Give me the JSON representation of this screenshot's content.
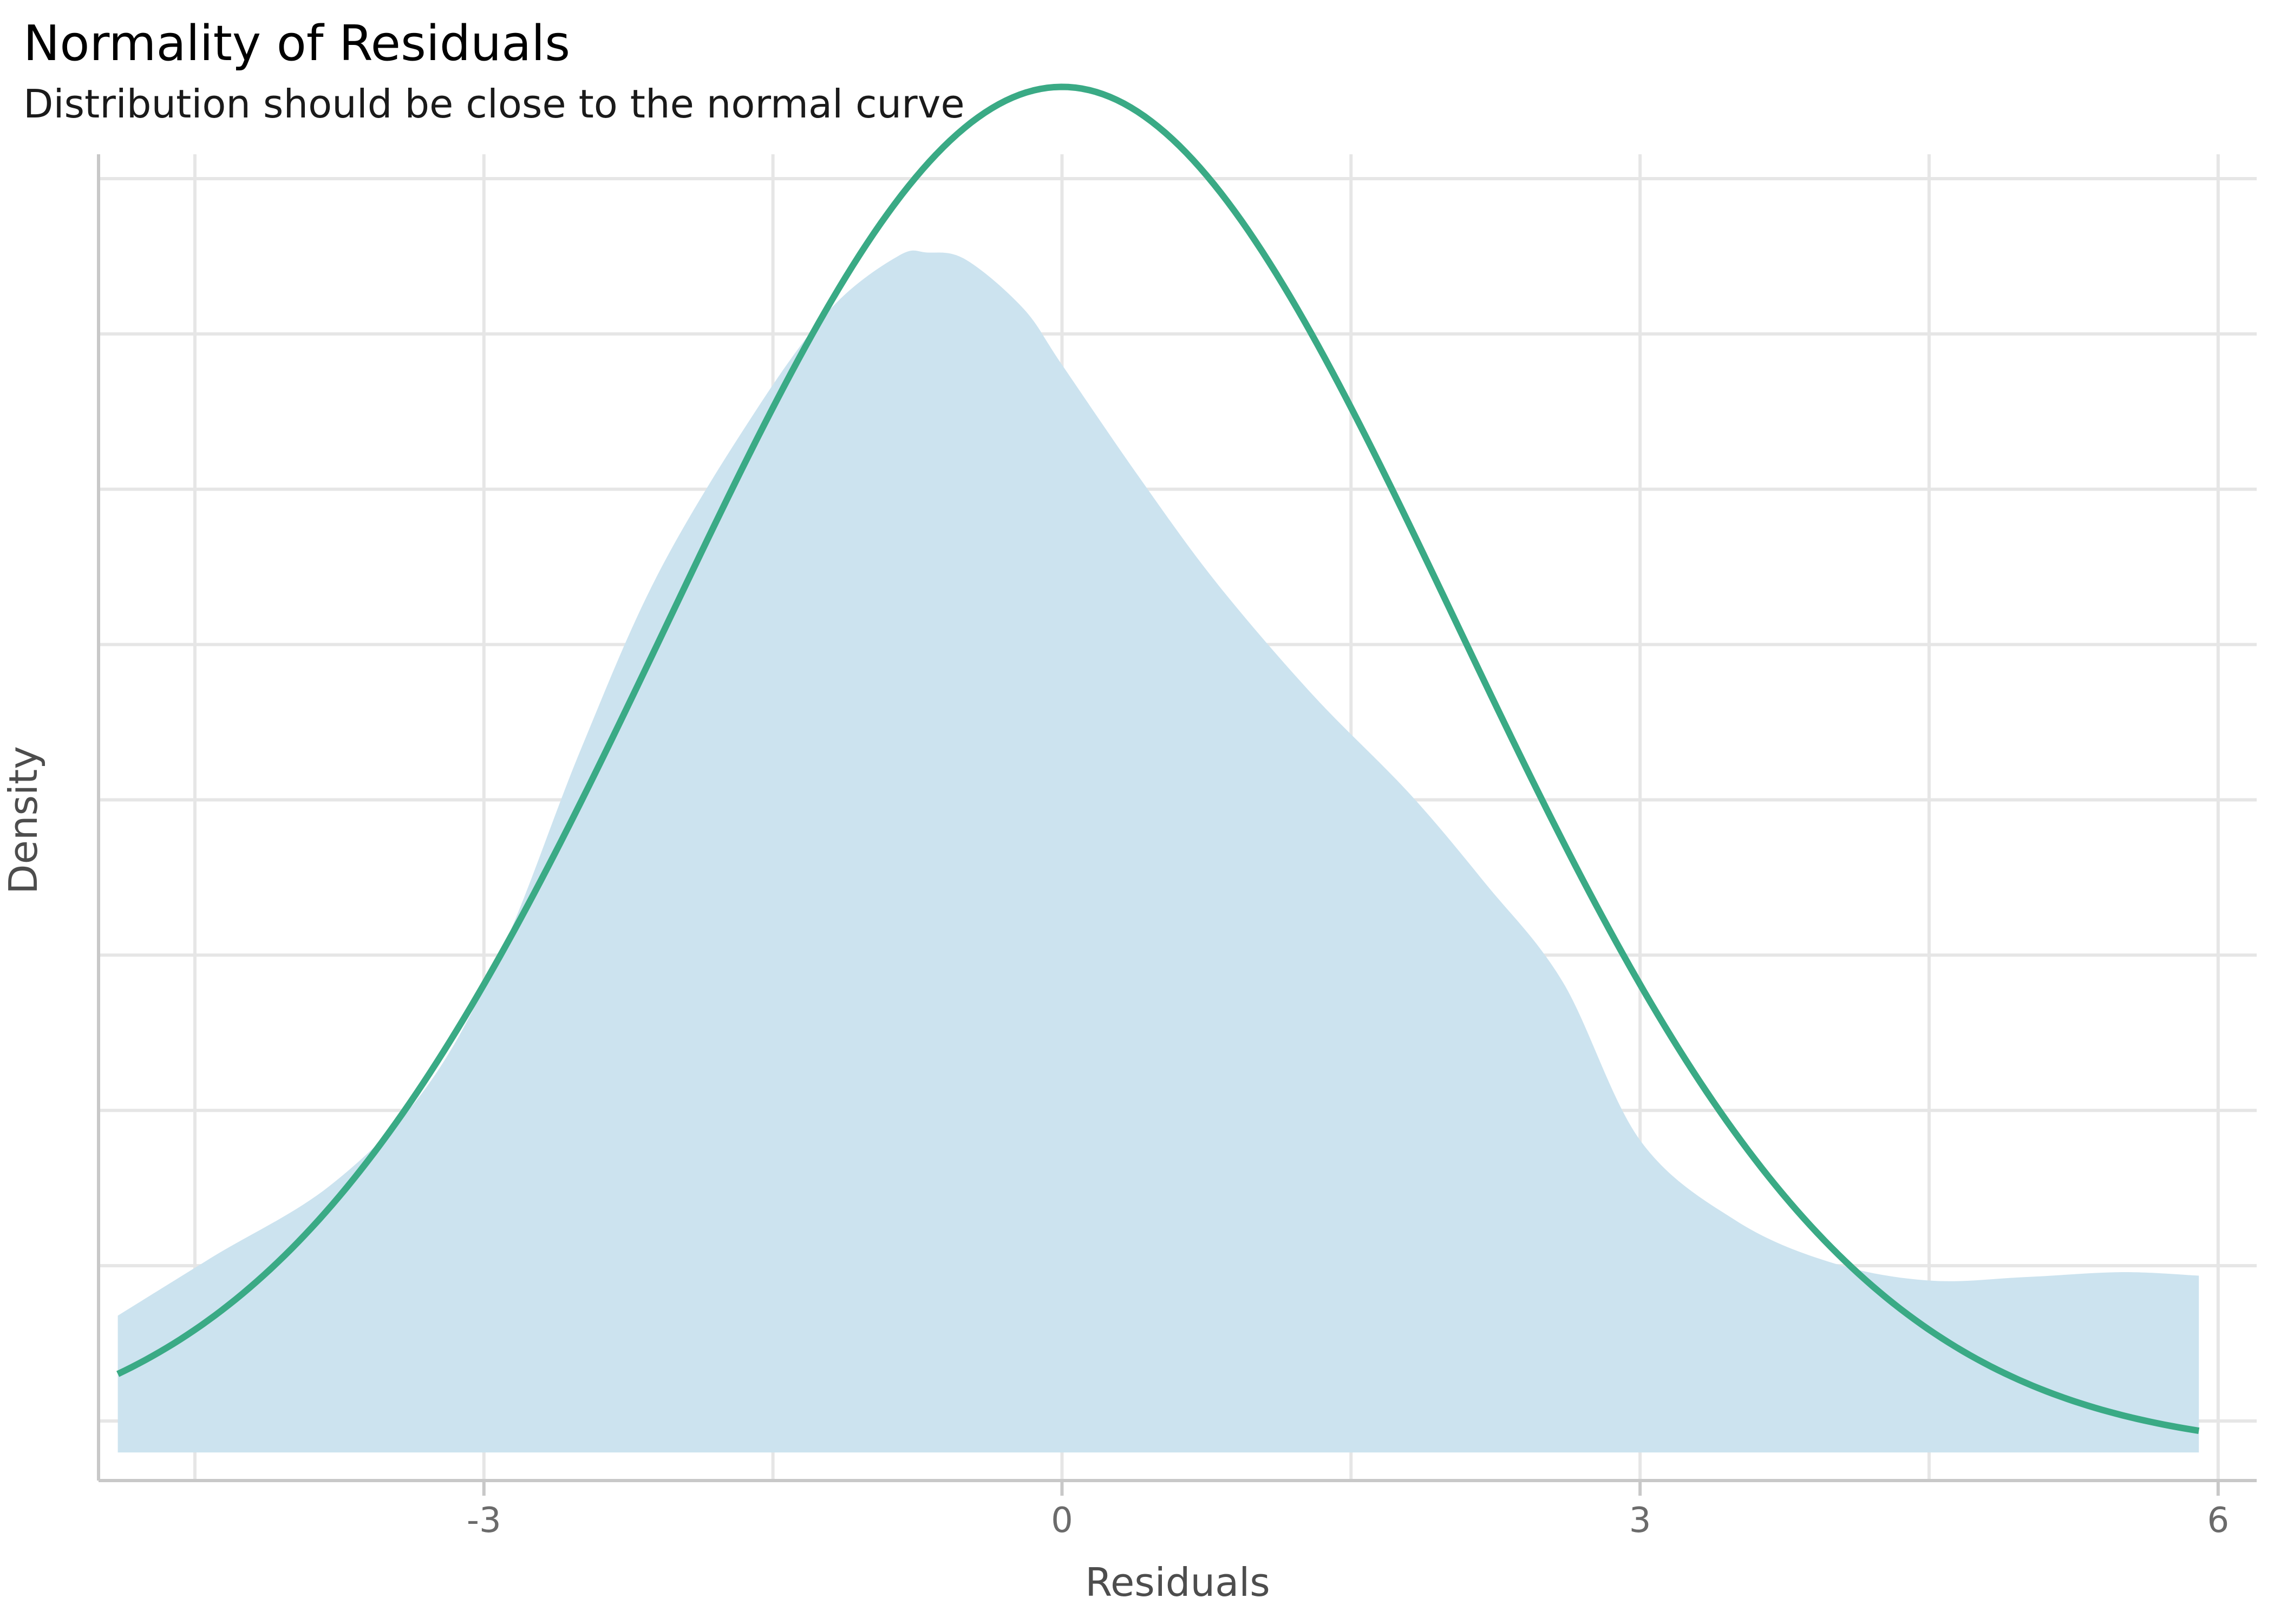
{
  "chart_data": {
    "type": "area",
    "title": "Normality of Residuals",
    "subtitle": "Distribution should be close to the normal curve",
    "xlabel": "Residuals",
    "ylabel": "Density",
    "xlim": [
      -5.0,
      6.2
    ],
    "ylim": [
      -0.004,
      0.185
    ],
    "x_ticks": [
      -3,
      0,
      3,
      6
    ],
    "x_tick_labels": [
      "-3",
      "0",
      "3",
      "6"
    ],
    "y_tick_labels_shown": false,
    "grid": true,
    "series": [
      {
        "kind": "density-area",
        "color": "#cce3ef",
        "points": [
          [
            -4.9,
            0.0195
          ],
          [
            -4.4,
            0.028
          ],
          [
            -3.8,
            0.038
          ],
          [
            -3.3,
            0.052
          ],
          [
            -2.9,
            0.072
          ],
          [
            -2.5,
            0.1
          ],
          [
            -2.1,
            0.125
          ],
          [
            -1.6,
            0.148
          ],
          [
            -1.2,
            0.163
          ],
          [
            -0.85,
            0.1705
          ],
          [
            -0.7,
            0.171
          ],
          [
            -0.5,
            0.17
          ],
          [
            -0.2,
            0.163
          ],
          [
            0.0,
            0.155
          ],
          [
            0.4,
            0.139
          ],
          [
            0.8,
            0.124
          ],
          [
            1.3,
            0.108
          ],
          [
            1.8,
            0.094
          ],
          [
            2.2,
            0.081
          ],
          [
            2.6,
            0.067
          ],
          [
            3.0,
            0.0445
          ],
          [
            3.5,
            0.033
          ],
          [
            4.0,
            0.027
          ],
          [
            4.5,
            0.0245
          ],
          [
            5.0,
            0.025
          ],
          [
            5.5,
            0.0257
          ],
          [
            5.9,
            0.0252
          ]
        ]
      },
      {
        "kind": "normal-curve",
        "color": "#3aaa85",
        "mean": 0.0,
        "sd": 2.05,
        "x_range": [
          -4.9,
          5.9
        ]
      }
    ]
  }
}
